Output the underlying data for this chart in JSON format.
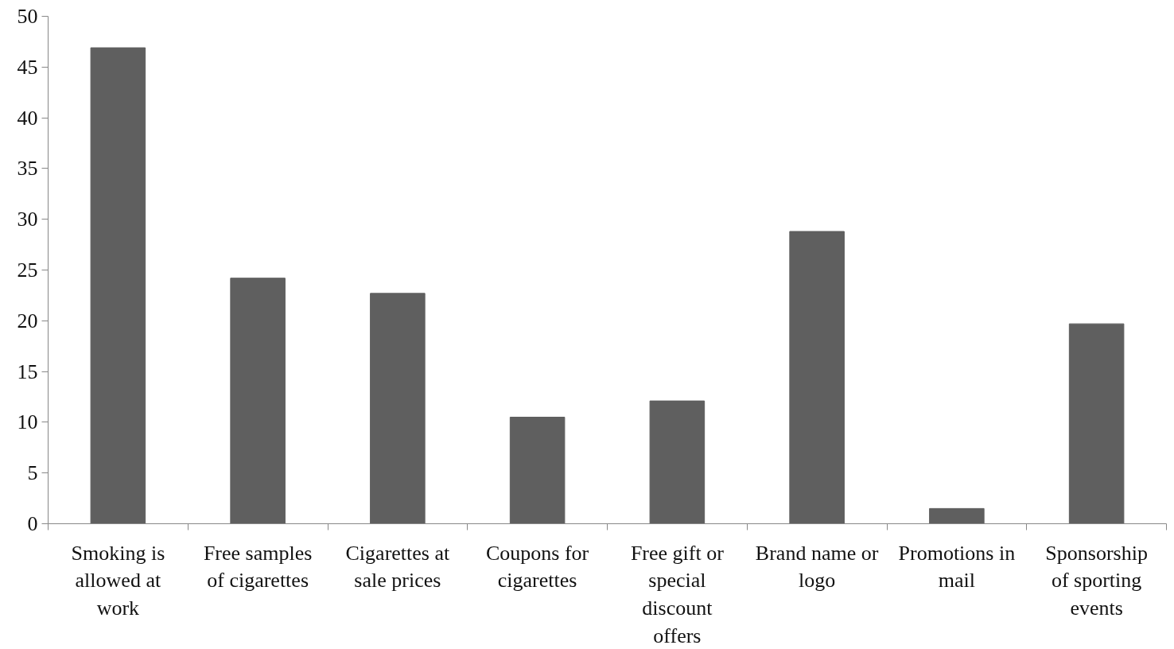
{
  "chart_data": {
    "type": "bar",
    "categories": [
      "Smoking is allowed at work",
      "Free samples of cigarettes",
      "Cigarettes at sale prices",
      "Coupons for cigarettes",
      "Free gift or special discount offers",
      "Brand name or logo",
      "Promotions in mail",
      "Sponsorship of sporting events"
    ],
    "values": [
      46.9,
      24.2,
      22.7,
      10.5,
      12.1,
      28.8,
      1.5,
      19.7
    ],
    "color": "#5f5f5f",
    "ylim": [
      0,
      50
    ],
    "yticks": [
      0,
      5,
      10,
      15,
      20,
      25,
      30,
      35,
      40,
      45,
      50
    ],
    "grid": false
  }
}
